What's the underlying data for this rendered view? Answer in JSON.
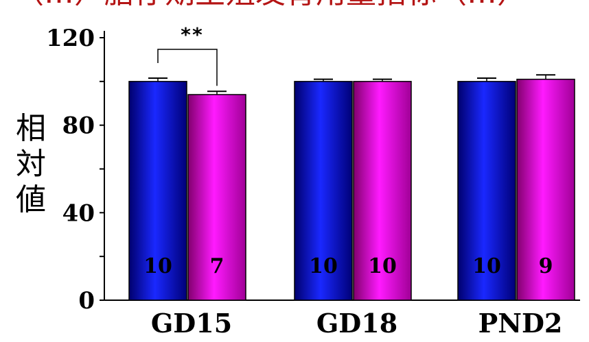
{
  "chart_data": {
    "type": "bar",
    "title": "（…）胎仔期生殖发育用量指标（…）",
    "ylabel": "相対値",
    "xlabel": "",
    "ylim": [
      0,
      120
    ],
    "yticks": [
      0,
      40,
      80,
      120
    ],
    "grid": false,
    "legend": "none",
    "categories": [
      "GD15",
      "GD18",
      "PND2"
    ],
    "series": [
      {
        "values": [
          100,
          100,
          100
        ],
        "errors": [
          1.5,
          1.0,
          1.5
        ],
        "n": [
          "10",
          "10",
          "10"
        ],
        "color": "#0a10c8"
      },
      {
        "values": [
          94,
          100,
          101
        ],
        "errors": [
          1.5,
          1.0,
          2.0
        ],
        "n": [
          "7",
          "10",
          "9"
        ],
        "color": "#e60fdc"
      }
    ],
    "annotations": [
      {
        "text": "**",
        "category": "GD15",
        "between": [
          0,
          1
        ]
      }
    ]
  },
  "colors": {
    "series_a": "#0a10c8",
    "series_b": "#e60fdc",
    "title": "#b41414"
  }
}
